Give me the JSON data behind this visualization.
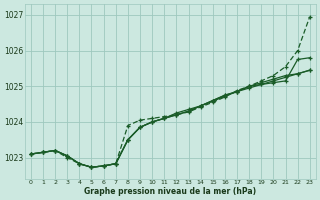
{
  "xlabel": "Graphe pression niveau de la mer (hPa)",
  "ylim": [
    1022.4,
    1027.3
  ],
  "xlim": [
    -0.5,
    23.5
  ],
  "xticks": [
    0,
    1,
    2,
    3,
    4,
    5,
    6,
    7,
    8,
    9,
    10,
    11,
    12,
    13,
    14,
    15,
    16,
    17,
    18,
    19,
    20,
    21,
    22,
    23
  ],
  "yticks": [
    1023,
    1024,
    1025,
    1026,
    1027
  ],
  "bg_color": "#cce8e0",
  "grid_color": "#9ec8be",
  "line_color": "#1a5c28",
  "series1_solid": [
    1023.1,
    1023.15,
    1023.2,
    1023.05,
    1022.83,
    1022.73,
    1022.77,
    1022.83,
    1023.5,
    1023.85,
    1024.0,
    1024.1,
    1024.25,
    1024.35,
    1024.45,
    1024.6,
    1024.75,
    1024.85,
    1024.95,
    1025.05,
    1025.15,
    1025.25,
    1025.35,
    1025.45
  ],
  "series2_solid": [
    1023.1,
    1023.15,
    1023.2,
    1023.05,
    1022.83,
    1022.73,
    1022.77,
    1022.83,
    1023.5,
    1023.85,
    1024.0,
    1024.1,
    1024.2,
    1024.3,
    1024.45,
    1024.6,
    1024.75,
    1024.85,
    1025.0,
    1025.1,
    1025.2,
    1025.3,
    1025.35,
    1025.45
  ],
  "series3_solid": [
    1023.1,
    1023.15,
    1023.2,
    1023.05,
    1022.83,
    1022.73,
    1022.77,
    1022.83,
    1023.5,
    1023.85,
    1024.0,
    1024.1,
    1024.2,
    1024.3,
    1024.45,
    1024.58,
    1024.72,
    1024.85,
    1025.0,
    1025.05,
    1025.1,
    1025.15,
    1025.75,
    1025.8
  ],
  "series4_dashed": [
    1023.1,
    1023.15,
    1023.2,
    1023.0,
    1022.83,
    1022.73,
    1022.77,
    1022.83,
    1023.9,
    1024.05,
    1024.1,
    1024.15,
    1024.2,
    1024.28,
    1024.42,
    1024.55,
    1024.7,
    1024.88,
    1025.0,
    1025.15,
    1025.3,
    1025.55,
    1026.0,
    1026.95
  ]
}
